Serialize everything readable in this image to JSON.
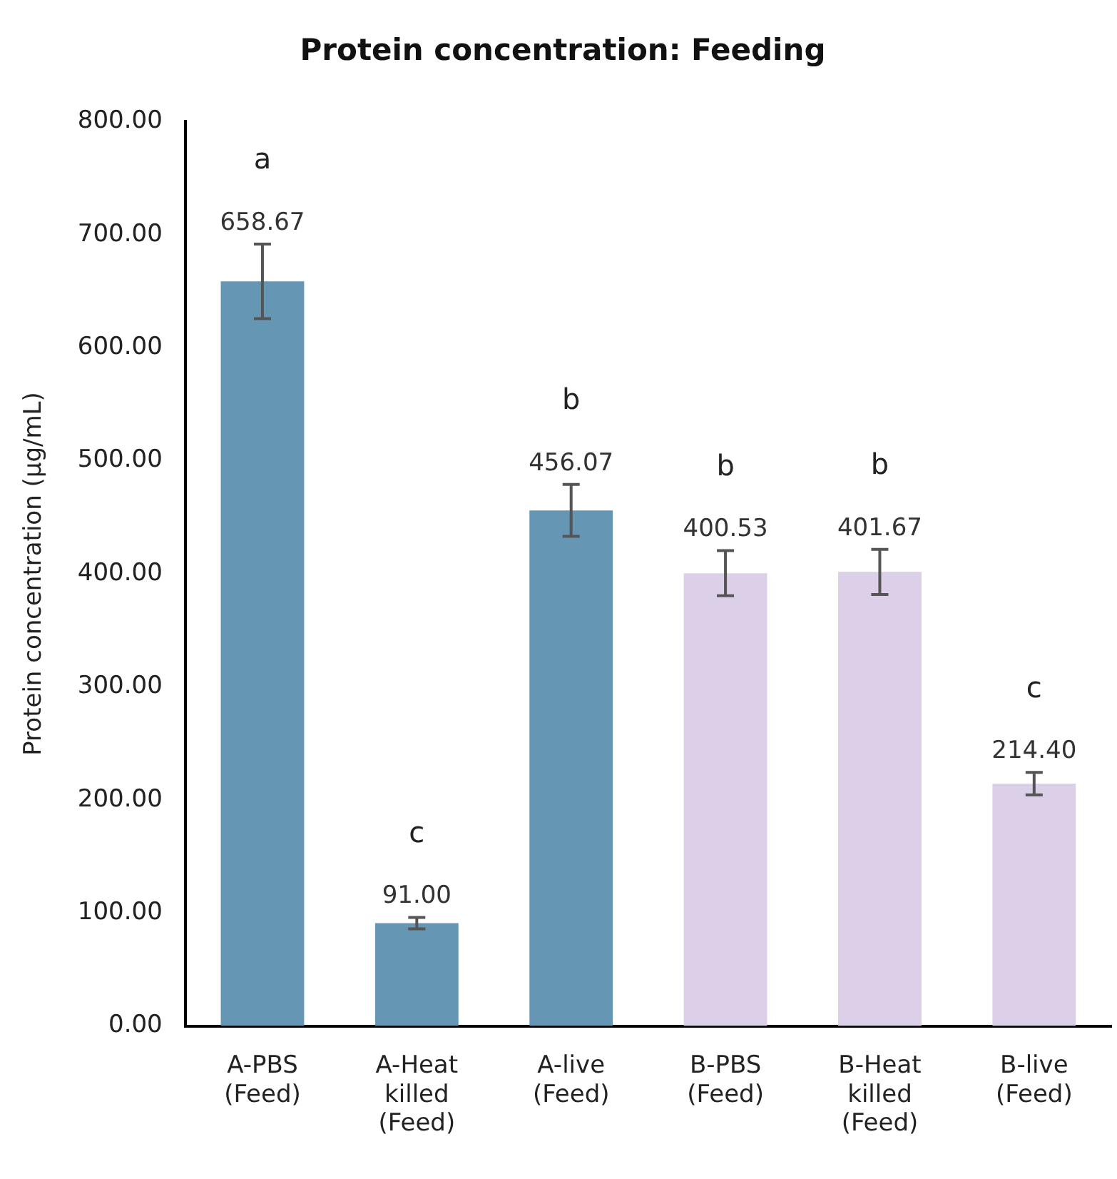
{
  "chart_data": {
    "type": "bar",
    "title": "Protein concentration: Feeding",
    "ylabel": "Protein concentration (µg/mL)",
    "categories": [
      "A-PBS (Feed)",
      "A-Heat killed (Feed)",
      "A-live (Feed)",
      "B-PBS (Feed)",
      "B-Heat killed (Feed)",
      "B-live (Feed)"
    ],
    "values": [
      658.67,
      91.0,
      456.07,
      400.53,
      401.67,
      214.4
    ],
    "colors": [
      "#6596b3",
      "#6596b3",
      "#6596b3",
      "#dccfe8",
      "#dccfe8",
      "#dccfe8"
    ],
    "errors": [
      33,
      5,
      23,
      20,
      20,
      10
    ],
    "value_labels": [
      "658.67",
      "91.00",
      "456.07",
      "400.53",
      "401.67",
      "214.40"
    ],
    "ylim": [
      0,
      800
    ],
    "yticks": [
      {
        "value": 0,
        "label": "0.00"
      },
      {
        "value": 100,
        "label": "100.00"
      },
      {
        "value": 200,
        "label": "200.00"
      },
      {
        "value": 300,
        "label": "300.00"
      },
      {
        "value": 400,
        "label": "400.00"
      },
      {
        "value": 500,
        "label": "500.00"
      },
      {
        "value": 600,
        "label": "600.00"
      },
      {
        "value": 700,
        "label": "700.00"
      },
      {
        "value": 800,
        "label": "800.00"
      }
    ],
    "grid": false,
    "legend": false,
    "annotations": [
      "a",
      "c",
      "b",
      "b",
      "b",
      "c"
    ]
  }
}
